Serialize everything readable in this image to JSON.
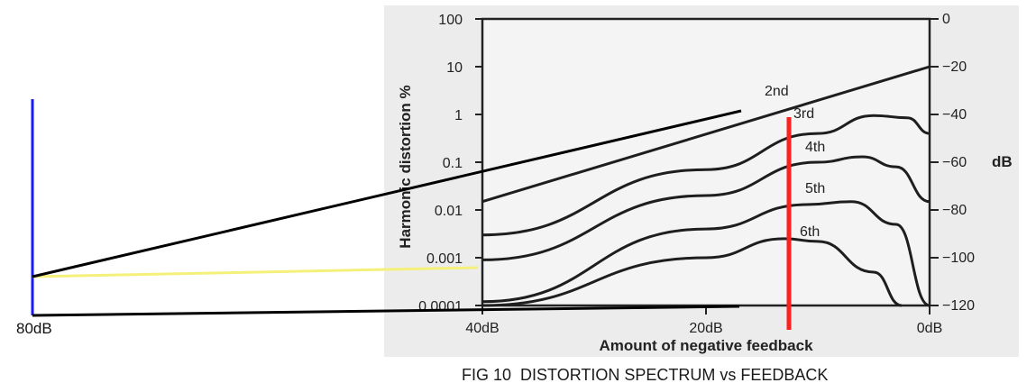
{
  "chart_data": {
    "type": "line",
    "title": "FIG 10  DISTORTION SPECTRUM vs FEEDBACK",
    "xlabel": "Amount of negative feedback",
    "ylabel": "Harmonic distortion %",
    "ylabel_right": "dB",
    "x_ticks": [
      "40dB",
      "20dB",
      "0dB"
    ],
    "x_range_db": [
      40,
      0
    ],
    "y_ticks": [
      "100",
      "10",
      "1",
      "0.1",
      "0.01",
      "0.001",
      "0.0001"
    ],
    "y_range_percent": [
      0.0001,
      100
    ],
    "y_scale": "log",
    "y_right_ticks": [
      "0",
      "−20",
      "−40",
      "−60",
      "−80",
      "−100",
      "−120"
    ],
    "series": [
      {
        "name": "2nd",
        "x": [
          40,
          0
        ],
        "y": [
          0.015,
          10
        ]
      },
      {
        "name": "3rd",
        "x": [
          40,
          20,
          10,
          5,
          2,
          0
        ],
        "y": [
          0.003,
          0.07,
          0.4,
          0.95,
          0.85,
          0.4
        ]
      },
      {
        "name": "4th",
        "x": [
          40,
          20,
          10,
          6,
          3,
          0
        ],
        "y": [
          0.0009,
          0.02,
          0.1,
          0.13,
          0.08,
          0.015
        ]
      },
      {
        "name": "5th",
        "x": [
          40,
          20,
          11,
          7,
          3,
          0
        ],
        "y": [
          0.00012,
          0.004,
          0.013,
          0.015,
          0.005,
          0.0001
        ]
      },
      {
        "name": "6th",
        "x": [
          40,
          20,
          13,
          10,
          5,
          2.5
        ],
        "y": [
          0.0001,
          0.001,
          0.0025,
          0.0022,
          0.0005,
          0.0001
        ]
      }
    ],
    "overlay_label": "80dB",
    "grid": false,
    "legend": "inline-labels"
  },
  "caption": "FIG 10  DISTORTION SPECTRUM vs FEEDBACK"
}
